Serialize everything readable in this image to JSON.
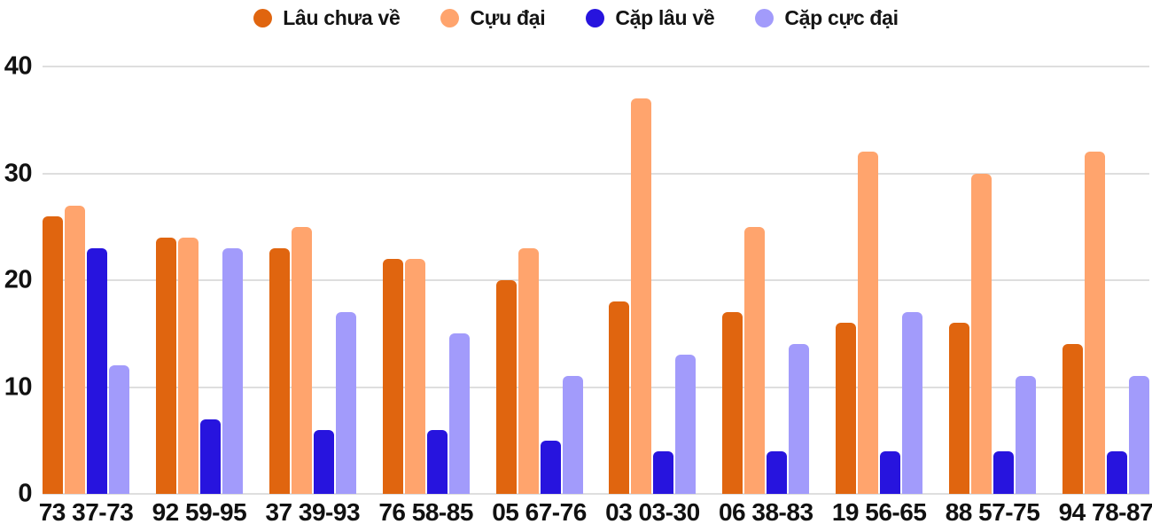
{
  "chart_data": {
    "type": "bar",
    "title": "",
    "xlabel": "",
    "ylabel": "",
    "categories": [
      "73 37-73",
      "92 59-95",
      "37 39-93",
      "76 58-85",
      "05 67-76",
      "03 03-30",
      "06 38-83",
      "19 56-65",
      "88 57-75",
      "94 78-87"
    ],
    "series": [
      {
        "name": "Lâu chưa về",
        "color": "#E0650F",
        "values": [
          26,
          24,
          23,
          22,
          20,
          18,
          17,
          16,
          16,
          14
        ]
      },
      {
        "name": "Cựu đại",
        "color": "#FFA46D",
        "values": [
          27,
          24,
          25,
          22,
          23,
          37,
          25,
          32,
          30,
          32
        ]
      },
      {
        "name": "Cặp lâu về",
        "color": "#2714DE",
        "values": [
          23,
          7,
          6,
          6,
          5,
          4,
          4,
          4,
          4,
          4
        ]
      },
      {
        "name": "Cặp cực đại",
        "color": "#A29BFB",
        "values": [
          12,
          23,
          17,
          15,
          11,
          13,
          14,
          17,
          11,
          11
        ]
      }
    ],
    "yticks": [
      0,
      10,
      20,
      30,
      40
    ],
    "ylim": [
      0,
      40
    ],
    "grid": true,
    "legend_position": "top-center",
    "colors": {
      "background": "#ffffff",
      "gridline": "#dedede",
      "axis_text": "#111111",
      "legend_text": "#141414"
    }
  }
}
